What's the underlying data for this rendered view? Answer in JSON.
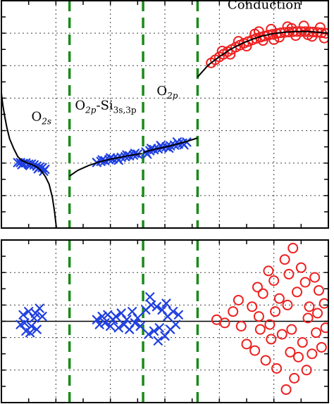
{
  "chart_data": [
    {
      "type": "scatter",
      "panel": "top",
      "grid": true,
      "legend": "none",
      "xlim": [
        0,
        12
      ],
      "ylim": [
        -5,
        9
      ],
      "region_boundaries_x": [
        2.5,
        5.2,
        7.2
      ],
      "annotations": [
        {
          "base": "O",
          "sub": "2s",
          "x": 1.1,
          "y": 1.6
        },
        {
          "parts": [
            {
              "t": "O"
            },
            {
              "sub": "2p"
            },
            {
              "t": "-Si"
            },
            {
              "subr": "3s,3p"
            }
          ],
          "x": 2.7,
          "y": 2.3
        },
        {
          "base": "O",
          "sub": "2p",
          "x": 5.7,
          "y": 3.2
        },
        {
          "text": "Conduction",
          "x": 8.3,
          "y": 8.5
        }
      ],
      "series": [
        {
          "marker": "x",
          "color": "#1f3fe0",
          "points": [
            [
              0.6,
              -0.97
            ],
            [
              0.7,
              -0.97
            ],
            [
              0.8,
              -1.02
            ],
            [
              0.9,
              -0.99
            ],
            [
              1.0,
              -1.07
            ],
            [
              1.1,
              -1.06
            ],
            [
              1.2,
              -1.11
            ],
            [
              1.3,
              -1.19
            ],
            [
              1.4,
              -1.24
            ],
            [
              1.5,
              -1.28
            ],
            [
              1.6,
              -1.38
            ],
            [
              0.75,
              -1.1
            ],
            [
              1.05,
              -1.15
            ],
            [
              1.35,
              -1.35
            ],
            [
              1.55,
              -1.5
            ]
          ]
        },
        {
          "marker": "x",
          "color": "#1f3fe0",
          "points": [
            [
              3.5,
              -0.96
            ],
            [
              3.65,
              -0.9
            ],
            [
              3.8,
              -0.85
            ],
            [
              3.95,
              -0.79
            ],
            [
              4.1,
              -0.74
            ],
            [
              4.25,
              -0.7
            ],
            [
              4.4,
              -0.65
            ],
            [
              4.55,
              -0.61
            ],
            [
              4.7,
              -0.55
            ],
            [
              4.85,
              -0.51
            ],
            [
              5.0,
              -0.45
            ],
            [
              3.7,
              -0.8
            ],
            [
              4.0,
              -0.68
            ],
            [
              4.3,
              -0.82
            ],
            [
              4.6,
              -0.5
            ],
            [
              4.9,
              -0.4
            ],
            [
              5.3,
              -0.32
            ],
            [
              5.45,
              -0.24
            ],
            [
              5.6,
              -0.17
            ],
            [
              5.75,
              -0.12
            ],
            [
              5.9,
              -0.05
            ],
            [
              6.05,
              0.0
            ],
            [
              6.2,
              0.06
            ],
            [
              6.35,
              0.11
            ],
            [
              6.5,
              0.17
            ],
            [
              6.65,
              0.23
            ],
            [
              6.8,
              0.29
            ],
            [
              5.5,
              -0.1
            ],
            [
              5.85,
              0.08
            ],
            [
              6.15,
              -0.08
            ],
            [
              6.45,
              0.3
            ],
            [
              6.7,
              0.12
            ],
            [
              5.35,
              -0.45
            ]
          ]
        },
        {
          "marker": "o",
          "color": "#ee1f1f",
          "points": [
            [
              7.7,
              5.17
            ],
            [
              7.85,
              5.36
            ],
            [
              8.0,
              5.54
            ],
            [
              8.15,
              5.7
            ],
            [
              8.3,
              5.86
            ],
            [
              8.45,
              6.0
            ],
            [
              8.6,
              6.14
            ],
            [
              8.75,
              6.26
            ],
            [
              8.9,
              6.38
            ],
            [
              9.05,
              6.48
            ],
            [
              9.2,
              6.58
            ],
            [
              9.35,
              6.67
            ],
            [
              9.5,
              6.75
            ],
            [
              9.65,
              6.82
            ],
            [
              9.8,
              6.88
            ],
            [
              9.95,
              6.93
            ],
            [
              10.1,
              6.98
            ],
            [
              10.25,
              7.02
            ],
            [
              10.4,
              7.05
            ],
            [
              10.55,
              7.07
            ],
            [
              10.7,
              7.09
            ],
            [
              10.85,
              7.1
            ],
            [
              11.0,
              7.1
            ],
            [
              11.15,
              7.1
            ],
            [
              11.3,
              7.09
            ],
            [
              11.45,
              7.07
            ],
            [
              11.6,
              7.05
            ],
            [
              11.75,
              7.02
            ],
            [
              11.9,
              6.99
            ],
            [
              8.1,
              5.9
            ],
            [
              8.4,
              5.7
            ],
            [
              8.7,
              6.5
            ],
            [
              9.0,
              6.2
            ],
            [
              9.3,
              6.95
            ],
            [
              9.6,
              6.55
            ],
            [
              9.9,
              7.25
            ],
            [
              10.2,
              6.75
            ],
            [
              10.5,
              7.4
            ],
            [
              10.8,
              6.85
            ],
            [
              11.1,
              7.45
            ],
            [
              11.4,
              6.8
            ],
            [
              11.7,
              7.35
            ],
            [
              9.45,
              7.1
            ],
            [
              10.0,
              6.6
            ],
            [
              10.65,
              7.3
            ],
            [
              11.25,
              6.9
            ],
            [
              11.85,
              6.7
            ]
          ]
        }
      ],
      "fit_curves": [
        [
          [
            0,
            3.3
          ],
          [
            0.05,
            2.6
          ],
          [
            0.12,
            1.9
          ],
          [
            0.2,
            1.2
          ],
          [
            0.3,
            0.5
          ],
          [
            0.45,
            -0.1
          ],
          [
            0.6,
            -0.6
          ],
          [
            0.75,
            -0.85
          ],
          [
            0.9,
            -0.95
          ],
          [
            1.05,
            -1.05
          ],
          [
            1.2,
            -1.15
          ],
          [
            1.35,
            -1.3
          ],
          [
            1.5,
            -1.55
          ],
          [
            1.62,
            -1.85
          ],
          [
            1.75,
            -2.3
          ],
          [
            1.87,
            -3.1
          ],
          [
            1.95,
            -4.0
          ],
          [
            2.02,
            -5.0
          ]
        ],
        [
          [
            2.5,
            -1.8
          ],
          [
            2.8,
            -1.45
          ],
          [
            3.2,
            -1.15
          ],
          [
            3.6,
            -0.92
          ],
          [
            4.0,
            -0.76
          ],
          [
            4.4,
            -0.63
          ],
          [
            4.8,
            -0.5
          ],
          [
            5.15,
            -0.42
          ]
        ],
        [
          [
            5.2,
            -0.34
          ],
          [
            5.6,
            -0.16
          ],
          [
            6.0,
            -0.02
          ],
          [
            6.4,
            0.15
          ],
          [
            6.8,
            0.33
          ],
          [
            7.2,
            0.55
          ]
        ],
        [
          [
            7.2,
            4.3
          ],
          [
            7.6,
            5.05
          ],
          [
            8.0,
            5.55
          ],
          [
            8.4,
            6.0
          ],
          [
            8.8,
            6.35
          ],
          [
            9.2,
            6.62
          ],
          [
            9.6,
            6.84
          ],
          [
            10.0,
            6.98
          ],
          [
            10.4,
            7.06
          ],
          [
            10.8,
            7.1
          ],
          [
            11.2,
            7.11
          ],
          [
            11.6,
            7.06
          ],
          [
            12.0,
            7.0
          ]
        ]
      ]
    },
    {
      "type": "scatter",
      "panel": "bottom",
      "grid": true,
      "legend": "none",
      "xlim": [
        0,
        12
      ],
      "ylim": [
        -5,
        5
      ],
      "region_boundaries_x": [
        2.5,
        5.2,
        7.2
      ],
      "reference_line_y": 0,
      "series": [
        {
          "marker": "x",
          "color": "#1f3fe0",
          "points": [
            [
              0.7,
              -0.2
            ],
            [
              0.8,
              0.4
            ],
            [
              0.9,
              -0.6
            ],
            [
              1.0,
              0.6
            ],
            [
              1.1,
              -0.3
            ],
            [
              1.2,
              0.2
            ],
            [
              1.3,
              -0.5
            ],
            [
              1.4,
              0.8
            ],
            [
              1.5,
              0.3
            ],
            [
              0.85,
              -0.1
            ],
            [
              1.25,
              0.5
            ],
            [
              1.05,
              -0.7
            ]
          ]
        },
        {
          "marker": "x",
          "color": "#1f3fe0",
          "points": [
            [
              3.5,
              0.1
            ],
            [
              3.6,
              -0.2
            ],
            [
              3.7,
              0.3
            ],
            [
              3.8,
              -0.1
            ],
            [
              3.9,
              0.4
            ],
            [
              4.0,
              -0.3
            ],
            [
              4.1,
              0.1
            ],
            [
              4.2,
              0.3
            ],
            [
              4.3,
              -0.4
            ],
            [
              4.4,
              0.5
            ],
            [
              4.5,
              -0.2
            ],
            [
              4.6,
              0.1
            ],
            [
              4.7,
              -0.5
            ],
            [
              4.8,
              0.6
            ],
            [
              4.9,
              -0.1
            ],
            [
              5.0,
              0.2
            ],
            [
              5.1,
              -0.3
            ],
            [
              5.3,
              0.7
            ],
            [
              5.4,
              -0.8
            ],
            [
              5.5,
              1.0
            ],
            [
              5.6,
              -0.6
            ],
            [
              5.7,
              0.9
            ],
            [
              5.8,
              -0.4
            ],
            [
              5.9,
              0.7
            ],
            [
              6.0,
              -0.9
            ],
            [
              6.1,
              0.3
            ],
            [
              6.2,
              -0.5
            ],
            [
              6.3,
              0.6
            ],
            [
              6.4,
              -0.2
            ],
            [
              6.5,
              0.4
            ],
            [
              5.45,
              1.5
            ],
            [
              5.75,
              -1.2
            ],
            [
              6.05,
              1.1
            ]
          ]
        },
        {
          "marker": "o",
          "color": "#ee1f1f",
          "points": [
            [
              7.9,
              0.1
            ],
            [
              8.2,
              -0.1
            ],
            [
              8.5,
              0.6
            ],
            [
              8.8,
              -0.3
            ],
            [
              8.7,
              1.3
            ],
            [
              9.0,
              -1.4
            ],
            [
              9.2,
              0.9
            ],
            [
              9.3,
              -1.8
            ],
            [
              9.4,
              2.1
            ],
            [
              9.5,
              -0.5
            ],
            [
              9.6,
              1.7
            ],
            [
              9.7,
              -2.4
            ],
            [
              9.8,
              3.1
            ],
            [
              9.9,
              -1.1
            ],
            [
              10.0,
              2.5
            ],
            [
              10.1,
              -2.9
            ],
            [
              10.2,
              1.4
            ],
            [
              10.3,
              -0.8
            ],
            [
              10.4,
              3.8
            ],
            [
              10.45,
              -4.2
            ],
            [
              10.55,
              2.9
            ],
            [
              10.6,
              -1.9
            ],
            [
              10.7,
              4.5
            ],
            [
              10.75,
              -3.5
            ],
            [
              10.85,
              1.8
            ],
            [
              10.9,
              -2.2
            ],
            [
              11.0,
              3.3
            ],
            [
              11.05,
              -1.3
            ],
            [
              11.15,
              2.4
            ],
            [
              11.2,
              -3.0
            ],
            [
              11.3,
              0.9
            ],
            [
              11.4,
              -2.0
            ],
            [
              11.5,
              2.7
            ],
            [
              11.55,
              -0.7
            ],
            [
              11.65,
              1.9
            ],
            [
              11.75,
              -1.6
            ],
            [
              11.85,
              1.1
            ],
            [
              11.9,
              -0.4
            ],
            [
              9.45,
              0.3
            ],
            [
              10.05,
              0.6
            ],
            [
              10.65,
              -0.5
            ],
            [
              11.25,
              0.2
            ],
            [
              9.85,
              -0.2
            ],
            [
              10.5,
              1.0
            ],
            [
              11.6,
              0.5
            ]
          ]
        }
      ]
    }
  ]
}
